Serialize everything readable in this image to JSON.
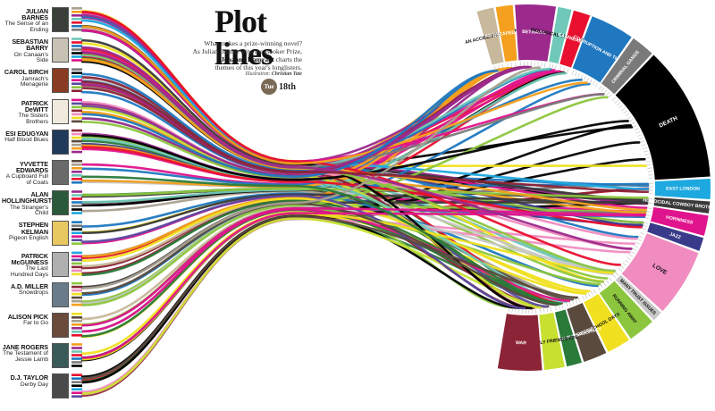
{
  "header": {
    "title": "Plot lines",
    "standfirst_1": "What makes a prize-winning novel?",
    "standfirst_2": "As Julian Barnes wins the Booker Prize,",
    "standfirst_3": "Johanna Kamradt",
    "standfirst_4": " charts the",
    "standfirst_5": "themes of this year's longlisters.",
    "credit_label": "Illustration: ",
    "credit_name": "Christian Tate",
    "date_day": "Tue",
    "date_num": "18th"
  },
  "books": [
    {
      "author": "JULIAN BARNES",
      "title": "The Sense of an Ending",
      "cover": "#3a3f3a",
      "color": "#a8a090"
    },
    {
      "author": "SEBASTIAN BARRY",
      "title": "On Canaan's Side",
      "cover": "#c8c2b4",
      "color": "#f4a01e"
    },
    {
      "author": "CAROL BIRCH",
      "title": "Jamrach's Menagerie",
      "cover": "#8a3c22",
      "color": "#9b2a8c"
    },
    {
      "author": "PATRICK DeWITT",
      "title": "The Sisters Brothers",
      "cover": "#f0eadc",
      "color": "#6fc8b8"
    },
    {
      "author": "ESI EDUGYAN",
      "title": "Half Blood Blues",
      "cover": "#1f3a5a",
      "color": "#e8102e"
    },
    {
      "author": "YVVETTE EDWARDS",
      "title": "A Cupboard Full of Coats",
      "cover": "#6a6a6a",
      "color": "#1f78c0"
    },
    {
      "author": "ALAN HOLLINGHURST",
      "title": "The Stranger's Child",
      "cover": "#2a5a3a",
      "color": "#7a7a7a"
    },
    {
      "author": "STEPHEN KELMAN",
      "title": "Pigeon English",
      "cover": "#e8c860",
      "color": "#000000"
    },
    {
      "author": "PATRICK McGUINESS",
      "title": "The Last Hundred Days",
      "cover": "#b0b0b0",
      "color": "#1ea8e0"
    },
    {
      "author": "A.D. MILLER",
      "title": "Snowdrops",
      "cover": "#6a7c8a",
      "color": "#e0148c"
    },
    {
      "author": "ALISON PICK",
      "title": "Far to Go",
      "cover": "#6a4a3a",
      "color": "#5a4aa0"
    },
    {
      "author": "JANE ROGERS",
      "title": "The Testament of Jessie Lamb",
      "cover": "#3a5a5a",
      "color": "#8cc63e"
    },
    {
      "author": "D.J. TAYLOR",
      "title": "Derby Day",
      "cover": "#4a4a4a",
      "color": "#8b2436"
    }
  ],
  "themes": [
    {
      "label": "AN ACCIDENTAL DEATH",
      "color": "#c8b89c"
    },
    {
      "label": "AN ESCAPED TIGER",
      "color": "#f4a01e"
    },
    {
      "label": "BETRAYAL",
      "color": "#9b2a8c"
    },
    {
      "label": "BIOLOGICAL TERRORISM",
      "color": "#6fc8b8"
    },
    {
      "label": "CANNIBALISM",
      "color": "#e8102e"
    },
    {
      "label": "CORRUPTION AND THEFT",
      "color": "#1f78c0"
    },
    {
      "label": "CRIMINAL GANGS",
      "color": "#7a7a7a"
    },
    {
      "label": "DEATH",
      "color": "#000000"
    },
    {
      "label": "EAST LONDON",
      "color": "#1ea8e0"
    },
    {
      "label": "HOMOCIDAL COWBOY BROTHERS",
      "color": "#3a3a3a"
    },
    {
      "label": "HORNINESS",
      "color": "#e0148c"
    },
    {
      "label": "JAZZ",
      "color": "#3a3a8a"
    },
    {
      "label": "LOVE",
      "color": "#f08cc0"
    },
    {
      "label": "MANY TRUST ISSUES",
      "color": "#c8c8c8"
    },
    {
      "label": "RUNNING AWAY",
      "color": "#8cc63e"
    },
    {
      "label": "SCHOOL DAYS",
      "color": "#f0e020"
    },
    {
      "label": "SUICIDE",
      "color": "#5a4a3e"
    },
    {
      "label": "TOTALITARIAN BUREAUCRACY",
      "color": "#2a7a3a"
    },
    {
      "label": "UNLIKELY FRIENDSHIPS",
      "color": "#c8e030"
    },
    {
      "label": "WAR",
      "color": "#8b2436"
    }
  ]
}
